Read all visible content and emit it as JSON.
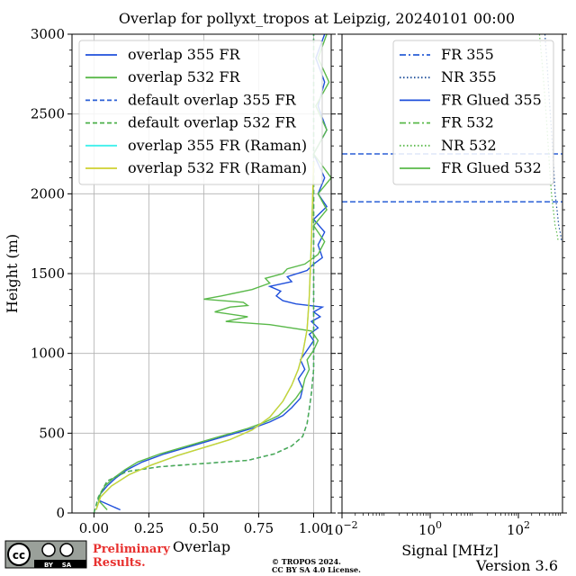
{
  "title": "Overlap for pollyxt_tropos at Leipzig, 20240101 00:00",
  "footer": {
    "preliminary_line1": "Preliminary",
    "preliminary_line2": "Results.",
    "copyright_line1": "© TROPOS 2024.",
    "copyright_line2": "CC BY SA 4.0 License.",
    "version": "Version 3.6",
    "license_badge": {
      "cc": "cc",
      "by": "BY",
      "sa": "SA"
    }
  },
  "chart_data": [
    {
      "type": "line",
      "name_hint": "overlap-panel",
      "xlabel": "Overlap",
      "ylabel": "Height (m)",
      "xlim": [
        -0.1,
        1.08
      ],
      "ylim": [
        0,
        3000
      ],
      "xticks": [
        0.0,
        0.25,
        0.5,
        0.75,
        1.0
      ],
      "xtick_labels": [
        "0.00",
        "0.25",
        "0.50",
        "0.75",
        "1.00"
      ],
      "yticks": [
        0,
        500,
        1000,
        1500,
        2000,
        2500,
        3000
      ],
      "ytick_labels": [
        "0",
        "500",
        "1000",
        "1500",
        "2000",
        "2500",
        "3000"
      ],
      "grid": true,
      "legend_position": "top-right",
      "series": [
        {
          "name": "overlap 355 FR",
          "color": "#1f4fdb",
          "dash": "solid",
          "x": [
            0.12,
            0.02,
            0.03,
            0.06,
            0.1,
            0.15,
            0.22,
            0.32,
            0.42,
            0.52,
            0.62,
            0.72,
            0.8,
            0.86,
            0.9,
            0.94,
            0.95,
            0.93,
            0.96,
            0.94,
            0.97,
            1.0,
            0.98,
            1.02,
            0.99,
            1.03,
            1.0,
            1.04,
            0.92,
            0.86,
            0.83,
            0.85,
            0.8,
            0.9,
            0.88,
            0.97,
            1.0,
            1.04,
            1.02,
            1.05,
            1.0,
            1.06,
            1.02,
            1.05,
            1.0,
            1.06,
            1.02,
            1.05,
            1.01,
            1.05
          ],
          "y": [
            20,
            80,
            120,
            170,
            220,
            270,
            320,
            370,
            410,
            450,
            490,
            530,
            570,
            610,
            660,
            720,
            780,
            840,
            900,
            960,
            1020,
            1080,
            1120,
            1160,
            1200,
            1230,
            1260,
            1290,
            1310,
            1330,
            1360,
            1390,
            1420,
            1450,
            1480,
            1520,
            1560,
            1600,
            1680,
            1760,
            1840,
            1920,
            2000,
            2100,
            2250,
            2400,
            2550,
            2700,
            2850,
            3000
          ]
        },
        {
          "name": "overlap 532 FR",
          "color": "#5ab94a",
          "dash": "solid",
          "x": [
            0.06,
            0.02,
            0.03,
            0.05,
            0.09,
            0.14,
            0.2,
            0.3,
            0.4,
            0.5,
            0.6,
            0.7,
            0.78,
            0.84,
            0.88,
            0.92,
            0.95,
            0.96,
            0.98,
            0.97,
            1.0,
            1.02,
            0.99,
            0.8,
            0.6,
            0.7,
            0.55,
            0.62,
            0.7,
            0.68,
            0.5,
            0.58,
            0.72,
            0.8,
            0.78,
            0.86,
            0.88,
            0.96,
            1.02,
            1.05,
            1.0,
            1.06,
            1.02,
            1.08,
            1.0,
            1.06,
            1.01,
            1.07,
            1.02,
            1.06
          ],
          "y": [
            20,
            80,
            120,
            170,
            220,
            270,
            320,
            370,
            410,
            450,
            490,
            530,
            570,
            610,
            660,
            720,
            780,
            840,
            900,
            960,
            1020,
            1080,
            1140,
            1180,
            1200,
            1230,
            1260,
            1290,
            1300,
            1320,
            1340,
            1360,
            1400,
            1440,
            1470,
            1500,
            1530,
            1560,
            1620,
            1700,
            1800,
            1900,
            2000,
            2100,
            2250,
            2400,
            2550,
            2700,
            2850,
            3000
          ]
        },
        {
          "name": "default overlap 355 FR",
          "color": "#2a5fd6",
          "dash": "dashed",
          "x": [
            0.0,
            0.02,
            0.06,
            0.15,
            0.3,
            0.5,
            0.7,
            0.82,
            0.9,
            0.95,
            0.97,
            0.98,
            0.99,
            1.0,
            1.0,
            1.0,
            1.0,
            1.0
          ],
          "y": [
            0,
            100,
            200,
            260,
            290,
            310,
            330,
            370,
            420,
            480,
            560,
            650,
            750,
            900,
            1100,
            1500,
            2000,
            3000
          ]
        },
        {
          "name": "default overlap 532 FR",
          "color": "#4cb04a",
          "dash": "dashed",
          "x": [
            0.0,
            0.02,
            0.06,
            0.15,
            0.3,
            0.5,
            0.7,
            0.82,
            0.9,
            0.95,
            0.97,
            0.98,
            0.99,
            1.0,
            1.0,
            1.0,
            1.0,
            1.0
          ],
          "y": [
            0,
            100,
            200,
            260,
            290,
            310,
            330,
            370,
            420,
            480,
            560,
            650,
            750,
            900,
            1100,
            1500,
            2000,
            3000
          ]
        },
        {
          "name": "overlap 355 FR (Raman)",
          "color": "#3ff0ec",
          "dash": "solid",
          "x": [
            0.01,
            0.03,
            0.08,
            0.16,
            0.26,
            0.38,
            0.5,
            0.62,
            0.72,
            0.8,
            0.86,
            0.9,
            0.93,
            0.95,
            0.97,
            0.98,
            0.99,
            1.0
          ],
          "y": [
            20,
            100,
            170,
            240,
            300,
            360,
            410,
            460,
            520,
            600,
            700,
            800,
            900,
            1000,
            1150,
            1350,
            1700,
            2200
          ]
        },
        {
          "name": "overlap 532 FR (Raman)",
          "color": "#cfd131",
          "dash": "solid",
          "x": [
            0.01,
            0.03,
            0.08,
            0.16,
            0.26,
            0.38,
            0.5,
            0.62,
            0.72,
            0.8,
            0.86,
            0.9,
            0.93,
            0.95,
            0.97,
            0.98,
            0.99,
            1.0
          ],
          "y": [
            20,
            100,
            170,
            240,
            300,
            360,
            410,
            460,
            520,
            600,
            700,
            800,
            900,
            1000,
            1150,
            1350,
            1700,
            2200
          ]
        }
      ]
    },
    {
      "type": "line",
      "name_hint": "signal-panel",
      "xlabel": "Signal [MHz]",
      "xscale": "log",
      "xlim": [
        0.01,
        1000
      ],
      "ylim": [
        0,
        3000
      ],
      "xticks": [
        0.01,
        1,
        100
      ],
      "xtick_labels": [
        "10−2",
        "100",
        "102"
      ],
      "grid": false,
      "legend_position": "top-right",
      "series": [
        {
          "name": "FR 355",
          "color": "#2a5fd6",
          "dash": "dashdot",
          "x": [],
          "y": []
        },
        {
          "name": "NR 355",
          "color": "#1f4f9a",
          "dash": "dotted",
          "x": [
            400,
            450,
            500,
            560,
            620,
            680,
            750,
            820,
            900,
            950
          ],
          "y": [
            3000,
            2800,
            2600,
            2400,
            2200,
            2000,
            1900,
            1800,
            1750,
            1700
          ]
        },
        {
          "name": "FR Glued 355",
          "color": "#1f4fdb",
          "dash": "solid",
          "x": [],
          "y": []
        },
        {
          "name": "FR 532",
          "color": "#5ab94a",
          "dash": "dashdot",
          "x": [],
          "y": []
        },
        {
          "name": "NR 532",
          "color": "#5ab94a",
          "dash": "dotted",
          "x": [
            300,
            350,
            400,
            450,
            500,
            560,
            620,
            680,
            750,
            800
          ],
          "y": [
            3000,
            2800,
            2600,
            2400,
            2200,
            2000,
            1900,
            1800,
            1750,
            1700
          ]
        },
        {
          "name": "FR Glued 532",
          "color": "#5ab94a",
          "dash": "solid",
          "x": [],
          "y": []
        }
      ],
      "reference_lines": [
        {
          "y": 2250,
          "color": "#2a5fd6",
          "dash": "dashed"
        },
        {
          "y": 1950,
          "color": "#2a5fd6",
          "dash": "dashed"
        }
      ]
    }
  ]
}
